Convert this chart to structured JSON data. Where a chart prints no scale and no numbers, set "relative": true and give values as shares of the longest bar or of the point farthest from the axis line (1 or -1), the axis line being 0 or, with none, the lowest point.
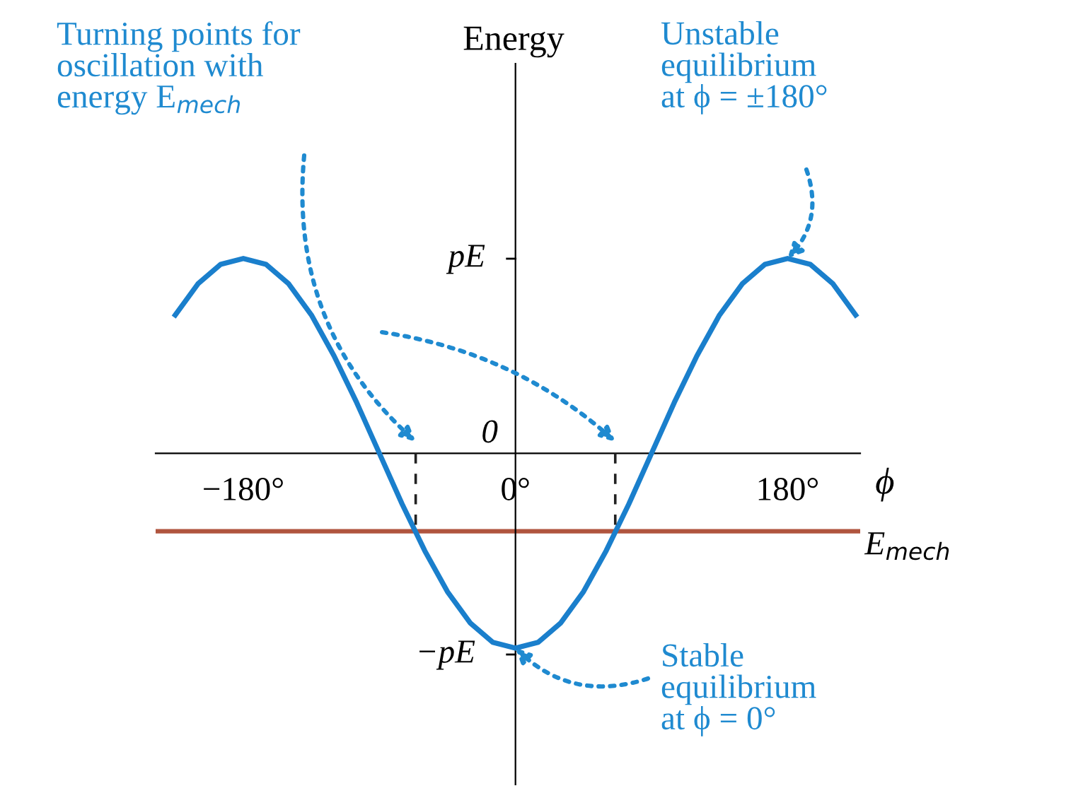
{
  "chart_data": {
    "type": "line",
    "xlabel": "ϕ",
    "xlim": [
      -238,
      228
    ],
    "relative": true,
    "xticks": [
      {
        "value": -180,
        "label": "−180°"
      },
      {
        "value": 0,
        "label": "0°"
      },
      {
        "value": 180,
        "label": "180°"
      }
    ],
    "marker": "none",
    "series": [
      {
        "color": "#1a7fcc",
        "line_style": "solid",
        "x": [
          -225,
          -210,
          -195,
          -180,
          -165,
          -150,
          -135,
          -120,
          -105,
          -90,
          -75,
          -60,
          -45,
          -30,
          -15,
          0,
          15,
          30,
          45,
          60,
          75,
          90,
          105,
          120,
          135,
          150,
          165,
          180,
          195,
          210,
          225
        ],
        "values": [
          0.71,
          0.87,
          0.97,
          1,
          0.97,
          0.87,
          0.71,
          0.5,
          0.26,
          0,
          -0.26,
          -0.5,
          -0.71,
          -0.87,
          -0.97,
          -1,
          -0.97,
          -0.87,
          -0.71,
          -0.5,
          -0.26,
          0,
          0.26,
          0.5,
          0.71,
          0.87,
          0.97,
          1,
          0.97,
          0.87,
          0.71
        ]
      },
      {
        "color": "#222222",
        "line_style": "dashed",
        "x": [
          -66,
          -66
        ],
        "values": [
          0,
          -0.4
        ]
      },
      {
        "color": "#222222",
        "line_style": "dashed",
        "x": [
          66,
          66
        ],
        "values": [
          0,
          -0.4
        ]
      }
    ],
    "ref_lines": [
      {
        "axis": "y",
        "value": -0.4,
        "label": "E$_{mech}$",
        "color": "#b0553f"
      }
    ],
    "annotations": [
      "Turning points for\noscillation with\nenergy E$_{mech}$",
      "Unstable\nequilibrium\nat ϕ = ±180°",
      "Stable\nequilibrium\nat ϕ = 0°",
      "Energy",
      "pE",
      "0",
      "−pE"
    ]
  }
}
